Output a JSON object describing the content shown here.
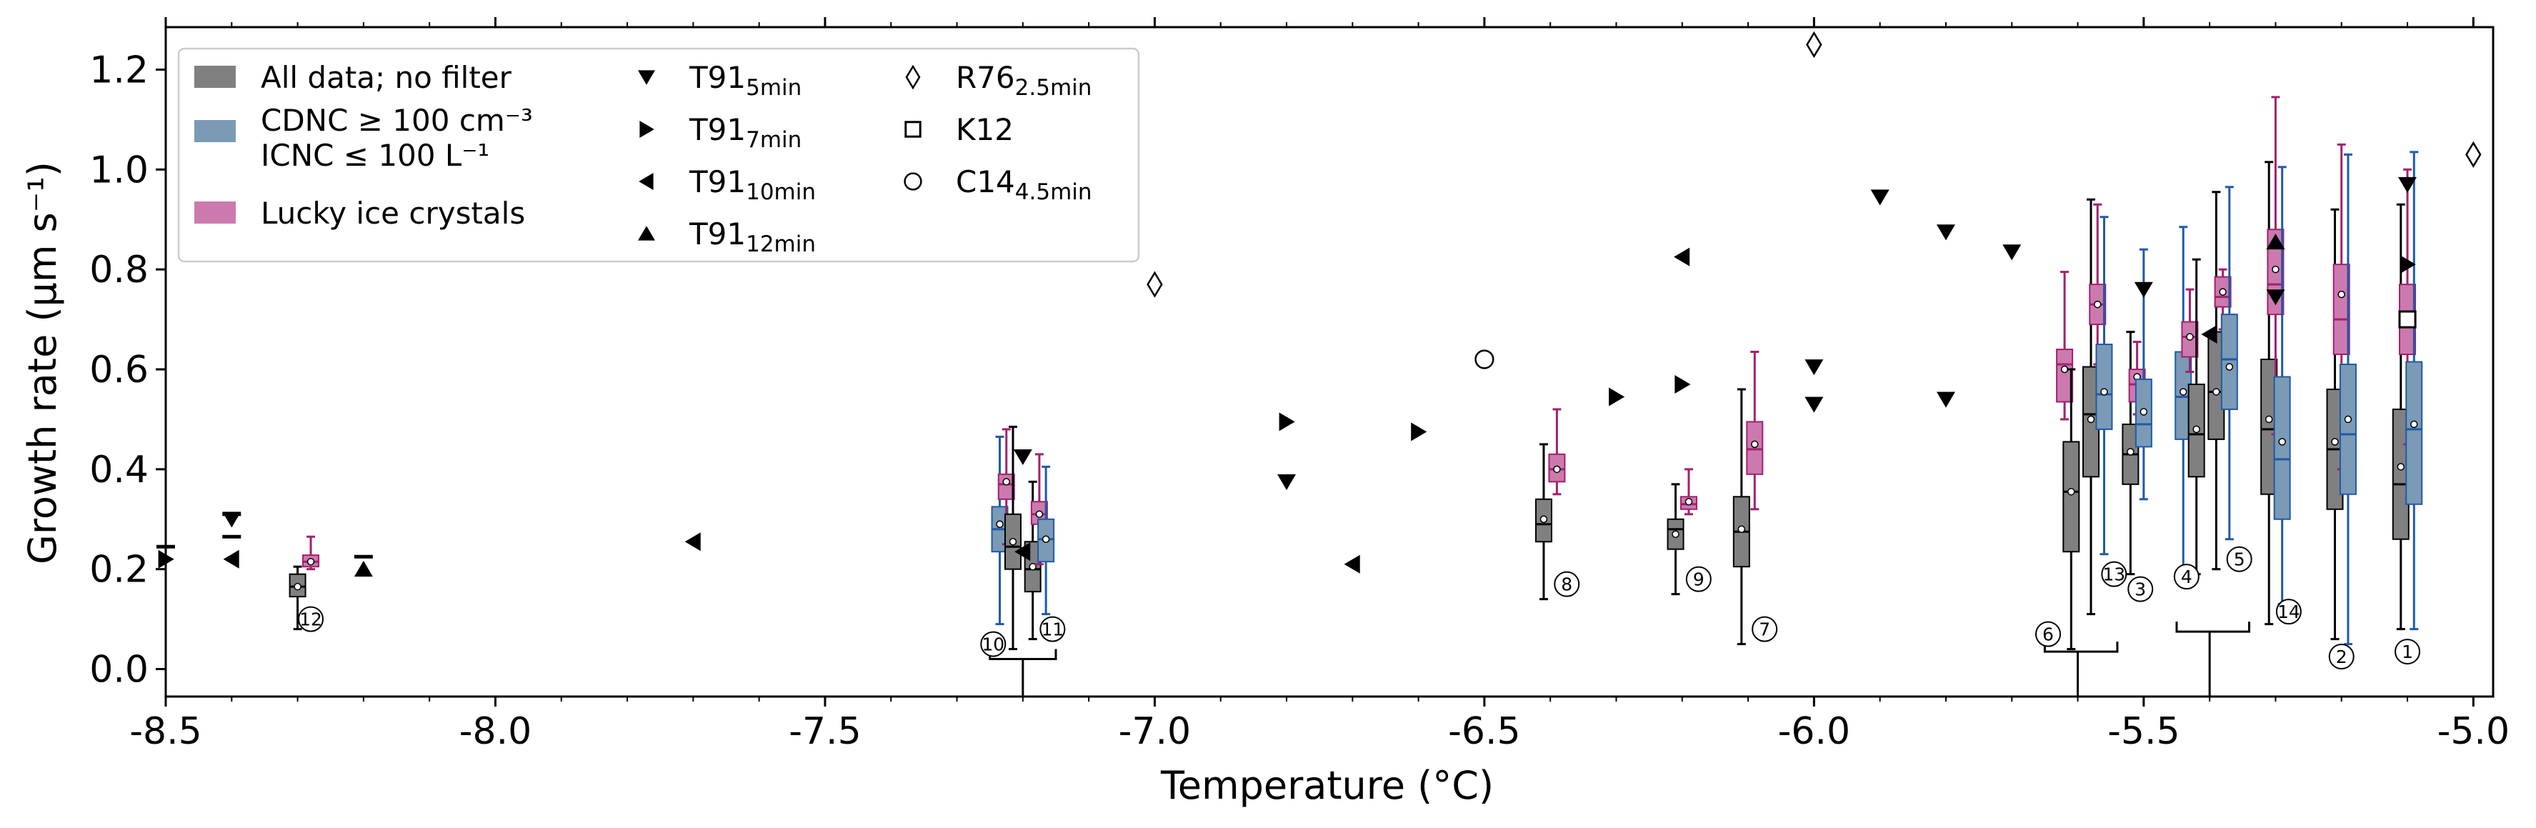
{
  "chart_data": {
    "type": "box",
    "xlabel": "Temperature (°C)",
    "ylabel": "Growth rate (μm s⁻¹)",
    "xlim": [
      -8.5,
      -4.97
    ],
    "ylim": [
      -0.055,
      1.285
    ],
    "x_ticks": [
      -8.5,
      -8.0,
      -7.5,
      -7.0,
      -6.5,
      -6.0,
      -5.5,
      -5.0
    ],
    "x_tick_labels": [
      "-8.5",
      "-8.0",
      "-7.5",
      "-7.0",
      "-6.5",
      "-6.0",
      "-5.5",
      "-5.0"
    ],
    "y_ticks": [
      0.0,
      0.2,
      0.4,
      0.6,
      0.8,
      1.0,
      1.2
    ],
    "y_tick_labels": [
      "0.0",
      "0.2",
      "0.4",
      "0.6",
      "0.8",
      "1.0",
      "1.2"
    ],
    "x_minor_step": 0.1,
    "grid": false,
    "legend_position": "top-left",
    "colors": {
      "all": "#808080",
      "cdnc": "#7b9ab5",
      "lucky": "#cc7aae",
      "all_edge": "#000000",
      "cdnc_edge": "#1f5aa8",
      "lucky_edge": "#a3206e"
    },
    "legend": {
      "col1": [
        {
          "lines": [
            "All data; no filter"
          ],
          "color": "#808080"
        },
        {
          "lines": [
            "CDNC ≥ 100 cm⁻³",
            "ICNC ≤ 100 L⁻¹"
          ],
          "color": "#7b9ab5"
        },
        {
          "lines": [
            "Lucky ice crystals"
          ],
          "color": "#cc7aae"
        }
      ],
      "col2": [
        {
          "marker": "triangle-down",
          "label": "T91",
          "sub": "5min"
        },
        {
          "marker": "triangle-right",
          "label": "T91",
          "sub": "7min"
        },
        {
          "marker": "triangle-left",
          "label": "T91",
          "sub": "10min"
        },
        {
          "marker": "triangle-up",
          "label": "T91",
          "sub": "12min"
        }
      ],
      "col3": [
        {
          "marker": "diamond-open",
          "label": "R76",
          "sub": "2.5min"
        },
        {
          "marker": "square-open",
          "label": "K12",
          "sub": ""
        },
        {
          "marker": "circle-open",
          "label": "C14",
          "sub": "4.5min"
        }
      ]
    },
    "boxes": [
      {
        "group": "all",
        "x": -8.3,
        "whislo": 0.08,
        "q1": 0.145,
        "med": 0.165,
        "q3": 0.19,
        "whishi": 0.205,
        "mean": 0.165
      },
      {
        "group": "lucky",
        "x": -8.28,
        "whislo": 0.2,
        "q1": 0.205,
        "med": 0.215,
        "q3": 0.228,
        "whishi": 0.265,
        "mean": 0.215
      },
      {
        "group": "cdnc",
        "x": -7.235,
        "whislo": 0.09,
        "q1": 0.235,
        "med": 0.28,
        "q3": 0.325,
        "whishi": 0.465,
        "mean": 0.29
      },
      {
        "group": "lucky",
        "x": -7.225,
        "whislo": 0.25,
        "q1": 0.34,
        "med": 0.37,
        "q3": 0.39,
        "whishi": 0.48,
        "mean": 0.375
      },
      {
        "group": "all",
        "x": -7.215,
        "whislo": 0.04,
        "q1": 0.2,
        "med": 0.245,
        "q3": 0.31,
        "whishi": 0.485,
        "mean": 0.255
      },
      {
        "group": "all",
        "x": -7.185,
        "whislo": 0.06,
        "q1": 0.155,
        "med": 0.2,
        "q3": 0.255,
        "whishi": 0.375,
        "mean": 0.205
      },
      {
        "group": "lucky",
        "x": -7.175,
        "whislo": 0.21,
        "q1": 0.29,
        "med": 0.31,
        "q3": 0.335,
        "whishi": 0.43,
        "mean": 0.31
      },
      {
        "group": "cdnc",
        "x": -7.165,
        "whislo": 0.11,
        "q1": 0.215,
        "med": 0.26,
        "q3": 0.3,
        "whishi": 0.405,
        "mean": 0.26
      },
      {
        "group": "all",
        "x": -6.41,
        "whislo": 0.14,
        "q1": 0.255,
        "med": 0.29,
        "q3": 0.34,
        "whishi": 0.45,
        "mean": 0.3
      },
      {
        "group": "lucky",
        "x": -6.39,
        "whislo": 0.35,
        "q1": 0.375,
        "med": 0.4,
        "q3": 0.43,
        "whishi": 0.52,
        "mean": 0.4
      },
      {
        "group": "all",
        "x": -6.21,
        "whislo": 0.15,
        "q1": 0.24,
        "med": 0.28,
        "q3": 0.3,
        "whishi": 0.37,
        "mean": 0.27
      },
      {
        "group": "lucky",
        "x": -6.19,
        "whislo": 0.31,
        "q1": 0.32,
        "med": 0.33,
        "q3": 0.345,
        "whishi": 0.4,
        "mean": 0.335
      },
      {
        "group": "all",
        "x": -6.11,
        "whislo": 0.05,
        "q1": 0.205,
        "med": 0.275,
        "q3": 0.345,
        "whishi": 0.56,
        "mean": 0.28
      },
      {
        "group": "lucky",
        "x": -6.09,
        "whislo": 0.32,
        "q1": 0.39,
        "med": 0.44,
        "q3": 0.495,
        "whishi": 0.635,
        "mean": 0.45
      },
      {
        "group": "lucky",
        "x": -5.62,
        "whislo": 0.5,
        "q1": 0.535,
        "med": 0.61,
        "q3": 0.64,
        "whishi": 0.795,
        "mean": 0.6
      },
      {
        "group": "all",
        "x": -5.61,
        "whislo": 0.04,
        "q1": 0.235,
        "med": 0.355,
        "q3": 0.455,
        "whishi": 0.6,
        "mean": 0.355
      },
      {
        "group": "all",
        "x": -5.58,
        "whislo": 0.11,
        "q1": 0.385,
        "med": 0.51,
        "q3": 0.605,
        "whishi": 0.94,
        "mean": 0.5
      },
      {
        "group": "lucky",
        "x": -5.57,
        "whislo": 0.61,
        "q1": 0.69,
        "med": 0.73,
        "q3": 0.77,
        "whishi": 0.93,
        "mean": 0.73
      },
      {
        "group": "cdnc",
        "x": -5.56,
        "whislo": 0.23,
        "q1": 0.48,
        "med": 0.55,
        "q3": 0.65,
        "whishi": 0.905,
        "mean": 0.555
      },
      {
        "group": "all",
        "x": -5.52,
        "whislo": 0.19,
        "q1": 0.37,
        "med": 0.43,
        "q3": 0.49,
        "whishi": 0.675,
        "mean": 0.435
      },
      {
        "group": "lucky",
        "x": -5.51,
        "whislo": 0.51,
        "q1": 0.535,
        "med": 0.57,
        "q3": 0.6,
        "whishi": 0.655,
        "mean": 0.585
      },
      {
        "group": "cdnc",
        "x": -5.5,
        "whislo": 0.34,
        "q1": 0.445,
        "med": 0.49,
        "q3": 0.58,
        "whishi": 0.84,
        "mean": 0.515
      },
      {
        "group": "cdnc",
        "x": -5.44,
        "whislo": 0.18,
        "q1": 0.46,
        "med": 0.545,
        "q3": 0.635,
        "whishi": 0.885,
        "mean": 0.555
      },
      {
        "group": "lucky",
        "x": -5.43,
        "whislo": 0.595,
        "q1": 0.625,
        "med": 0.665,
        "q3": 0.695,
        "whishi": 0.76,
        "mean": 0.665
      },
      {
        "group": "all",
        "x": -5.42,
        "whislo": 0.19,
        "q1": 0.385,
        "med": 0.47,
        "q3": 0.57,
        "whishi": 0.82,
        "mean": 0.48
      },
      {
        "group": "all",
        "x": -5.39,
        "whislo": 0.2,
        "q1": 0.46,
        "med": 0.555,
        "q3": 0.675,
        "whishi": 0.955,
        "mean": 0.555
      },
      {
        "group": "lucky",
        "x": -5.38,
        "whislo": 0.68,
        "q1": 0.725,
        "med": 0.745,
        "q3": 0.785,
        "whishi": 0.8,
        "mean": 0.755
      },
      {
        "group": "cdnc",
        "x": -5.37,
        "whislo": 0.26,
        "q1": 0.52,
        "med": 0.62,
        "q3": 0.71,
        "whishi": 0.965,
        "mean": 0.605
      },
      {
        "group": "all",
        "x": -5.31,
        "whislo": 0.09,
        "q1": 0.35,
        "med": 0.48,
        "q3": 0.62,
        "whishi": 1.015,
        "mean": 0.5
      },
      {
        "group": "lucky",
        "x": -5.3,
        "whislo": 0.47,
        "q1": 0.71,
        "med": 0.77,
        "q3": 0.88,
        "whishi": 1.145,
        "mean": 0.8
      },
      {
        "group": "cdnc",
        "x": -5.29,
        "whislo": 0.13,
        "q1": 0.3,
        "med": 0.42,
        "q3": 0.585,
        "whishi": 1.005,
        "mean": 0.455
      },
      {
        "group": "all",
        "x": -5.21,
        "whislo": 0.06,
        "q1": 0.32,
        "med": 0.44,
        "q3": 0.56,
        "whishi": 0.92,
        "mean": 0.455
      },
      {
        "group": "lucky",
        "x": -5.2,
        "whislo": 0.4,
        "q1": 0.63,
        "med": 0.7,
        "q3": 0.81,
        "whishi": 1.05,
        "mean": 0.75
      },
      {
        "group": "cdnc",
        "x": -5.19,
        "whislo": 0.05,
        "q1": 0.35,
        "med": 0.47,
        "q3": 0.61,
        "whishi": 1.03,
        "mean": 0.5
      },
      {
        "group": "all",
        "x": -5.11,
        "whislo": 0.08,
        "q1": 0.26,
        "med": 0.37,
        "q3": 0.52,
        "whishi": 0.93,
        "mean": 0.405
      },
      {
        "group": "lucky",
        "x": -5.1,
        "whislo": 0.45,
        "q1": 0.63,
        "med": 0.7,
        "q3": 0.77,
        "whishi": 1.0,
        "mean": 0.69
      },
      {
        "group": "cdnc",
        "x": -5.09,
        "whislo": 0.08,
        "q1": 0.33,
        "med": 0.48,
        "q3": 0.615,
        "whishi": 1.035,
        "mean": 0.49
      }
    ],
    "markers": [
      {
        "type": "triangle-down",
        "points": [
          [
            -8.4,
            0.3
          ],
          [
            -7.2,
            0.425
          ],
          [
            -6.8,
            0.375
          ],
          [
            -6.0,
            0.605
          ],
          [
            -6.0,
            0.53
          ],
          [
            -5.9,
            0.945
          ],
          [
            -5.8,
            0.875
          ],
          [
            -5.8,
            0.54
          ],
          [
            -5.7,
            0.835
          ],
          [
            -5.5,
            0.76
          ],
          [
            -5.3,
            0.745
          ],
          [
            -5.1,
            0.97
          ]
        ]
      },
      {
        "type": "triangle-right",
        "points": [
          [
            -8.5,
            0.22
          ],
          [
            -6.8,
            0.495
          ],
          [
            -6.6,
            0.475
          ],
          [
            -6.3,
            0.545
          ],
          [
            -6.2,
            0.57
          ],
          [
            -5.1,
            0.81
          ]
        ]
      },
      {
        "type": "triangle-left",
        "points": [
          [
            -8.4,
            0.22
          ],
          [
            -7.7,
            0.255
          ],
          [
            -7.2,
            0.235
          ],
          [
            -6.7,
            0.21
          ],
          [
            -6.2,
            0.825
          ],
          [
            -5.4,
            0.67
          ]
        ]
      },
      {
        "type": "triangle-up",
        "points": [
          [
            -8.2,
            0.2
          ],
          [
            -5.3,
            0.855
          ]
        ]
      },
      {
        "type": "diamond-open",
        "points": [
          [
            -7.0,
            0.77
          ],
          [
            -6.0,
            1.25
          ],
          [
            -5.0,
            1.03
          ]
        ]
      },
      {
        "type": "square-open",
        "points": [
          [
            -5.1,
            0.7
          ]
        ]
      },
      {
        "type": "circle-open",
        "points": [
          [
            -6.5,
            0.62
          ]
        ]
      }
    ],
    "dashes": [
      [
        -8.5,
        0.245
      ],
      [
        -8.4,
        0.31
      ],
      [
        -8.4,
        0.265
      ],
      [
        -8.2,
        0.225
      ]
    ],
    "annotations": [
      {
        "label": "12",
        "x": -8.28,
        "y": 0.1
      },
      {
        "label": "10",
        "x": -7.245,
        "y": 0.05
      },
      {
        "label": "11",
        "x": -7.155,
        "y": 0.08
      },
      {
        "label": "8",
        "x": -6.375,
        "y": 0.17
      },
      {
        "label": "9",
        "x": -6.175,
        "y": 0.18
      },
      {
        "label": "7",
        "x": -6.075,
        "y": 0.08
      },
      {
        "label": "6",
        "x": -5.645,
        "y": 0.07
      },
      {
        "label": "13",
        "x": -5.545,
        "y": 0.19
      },
      {
        "label": "3",
        "x": -5.505,
        "y": 0.16
      },
      {
        "label": "4",
        "x": -5.435,
        "y": 0.185
      },
      {
        "label": "5",
        "x": -5.355,
        "y": 0.22
      },
      {
        "label": "14",
        "x": -5.28,
        "y": 0.115
      },
      {
        "label": "2",
        "x": -5.2,
        "y": 0.025
      },
      {
        "label": "1",
        "x": -5.1,
        "y": 0.035
      }
    ],
    "brackets": [
      {
        "x1": -7.25,
        "x2": -7.15,
        "y": 0.02,
        "stem_x": -7.2
      },
      {
        "x1": -5.65,
        "x2": -5.54,
        "y": 0.035,
        "stem_x": -5.6
      },
      {
        "x1": -5.45,
        "x2": -5.34,
        "y": 0.075,
        "stem_x": -5.4
      }
    ]
  }
}
